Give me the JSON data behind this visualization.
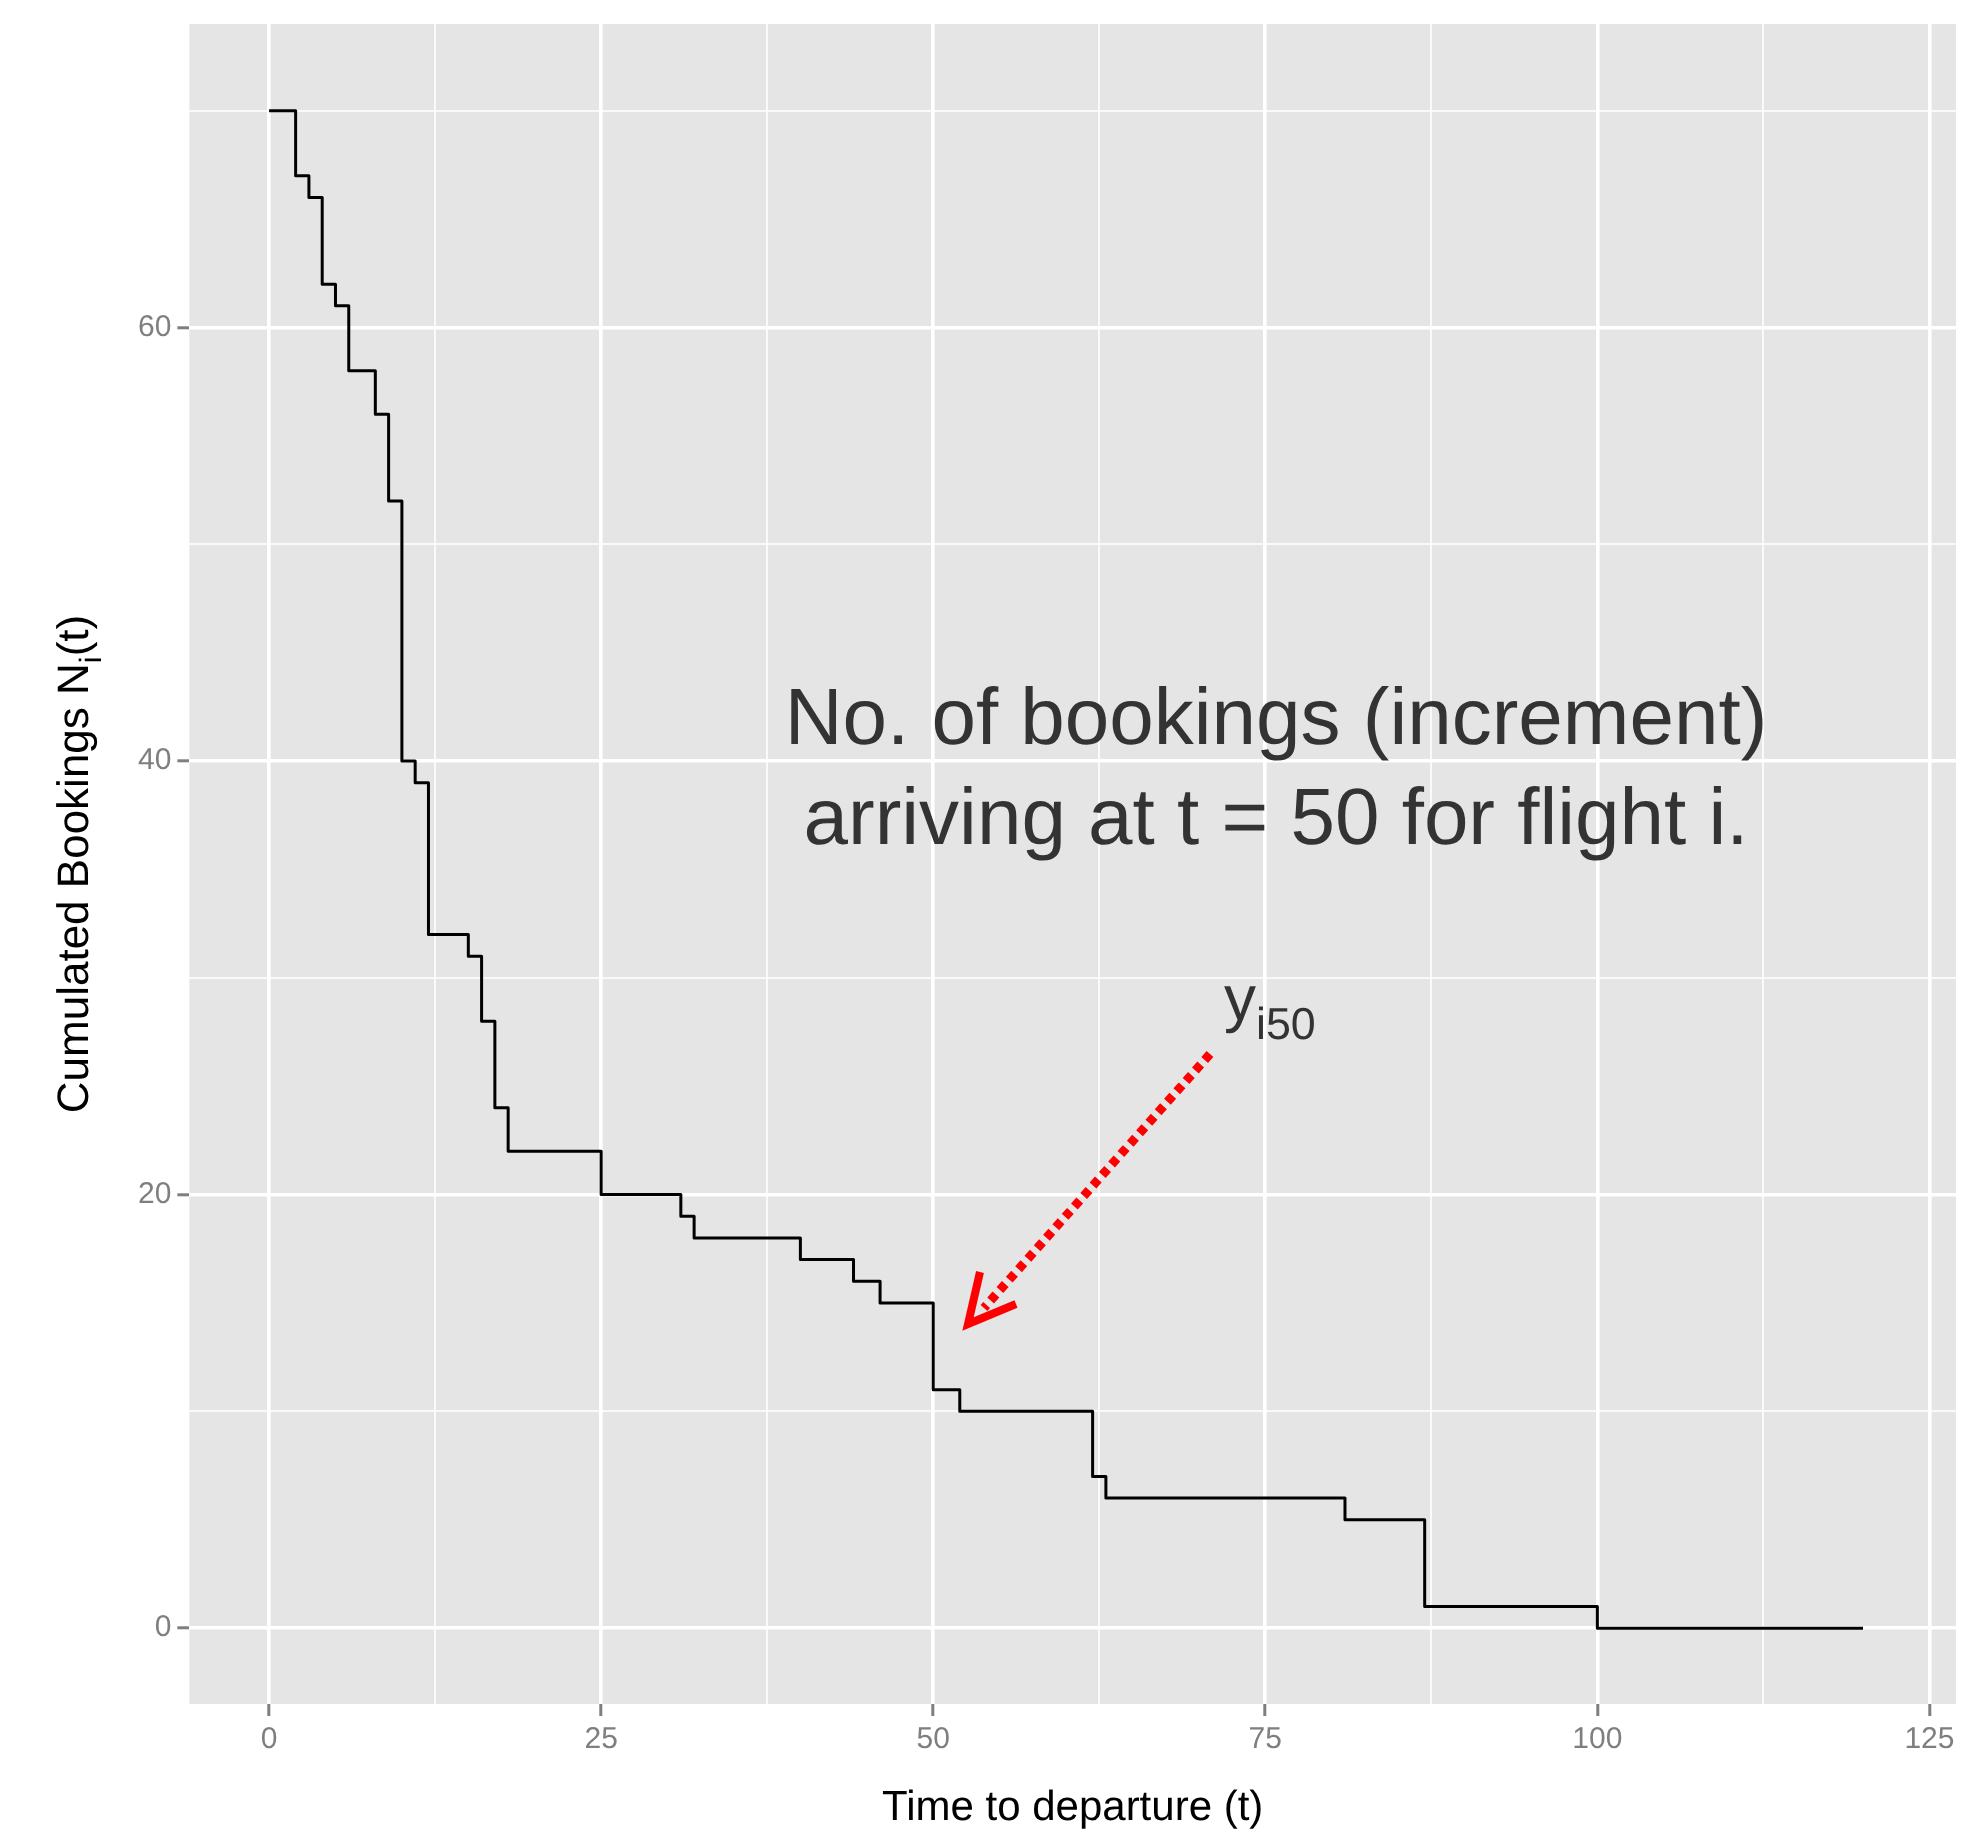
{
  "chart_data": {
    "type": "step",
    "xlabel": "Time to departure (t)",
    "ylabel": "Cumulated Bookings N$_{i}$(t)",
    "x": [
      0,
      2,
      3,
      4,
      5,
      6,
      8,
      9,
      10,
      11,
      12,
      15,
      16,
      17,
      18,
      25,
      31,
      32,
      40,
      44,
      46,
      50,
      52,
      62,
      63,
      81,
      87,
      100,
      120
    ],
    "series": [
      {
        "color": "#000000",
        "values": [
          70,
          67,
          66,
          62,
          61,
          58,
          56,
          52,
          40,
          39,
          32,
          31,
          28,
          24,
          22,
          20,
          19,
          18,
          17,
          16,
          15,
          11,
          10,
          7,
          6,
          5,
          1,
          0,
          0
        ]
      }
    ],
    "xlim": [
      -6,
      127
    ],
    "ylim": [
      -3.5,
      74
    ],
    "xticks": [
      0,
      {
        "value": 12.5,
        "label": null
      },
      25,
      {
        "value": 37.5,
        "label": null
      },
      50,
      {
        "value": 62.5,
        "label": null
      },
      75,
      {
        "value": 87.5,
        "label": null
      },
      100,
      {
        "value": 112.5,
        "label": null
      },
      125
    ],
    "yticks": [
      0,
      {
        "value": 10,
        "label": null
      },
      20,
      {
        "value": 30,
        "label": null
      },
      40,
      {
        "value": 50,
        "label": null
      },
      60,
      {
        "value": 70,
        "label": null
      }
    ],
    "grid": true,
    "legend": false,
    "marker": "none",
    "line_style": "solid",
    "annotations": [
      "No. of bookings (increment) arriving at t = 50 for flight i.",
      "y$_{i50}$"
    ]
  }
}
